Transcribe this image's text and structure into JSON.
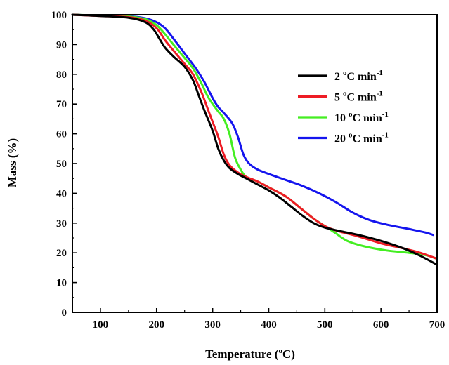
{
  "chart_data": {
    "type": "line",
    "xlabel": {
      "main": "Temperature (",
      "deg": "o",
      "unit": "C)"
    },
    "ylabel": "Mass (%)",
    "xlim": [
      50,
      700
    ],
    "ylim": [
      0,
      100
    ],
    "x_ticks": [
      100,
      200,
      300,
      400,
      500,
      600,
      700
    ],
    "y_ticks": [
      0,
      10,
      20,
      30,
      40,
      50,
      60,
      70,
      80,
      90,
      100
    ],
    "grid": false,
    "legend_position": "center-right",
    "series": [
      {
        "name": {
          "value": "2",
          "deg": "o",
          "unit": "C min",
          "exp": "-1"
        },
        "color": "#000000",
        "points": [
          [
            50,
            100
          ],
          [
            100,
            99.6
          ],
          [
            150,
            99
          ],
          [
            180,
            97.5
          ],
          [
            195,
            95
          ],
          [
            205,
            92
          ],
          [
            215,
            89
          ],
          [
            230,
            86
          ],
          [
            250,
            82.5
          ],
          [
            265,
            78
          ],
          [
            275,
            73
          ],
          [
            285,
            68
          ],
          [
            300,
            61
          ],
          [
            310,
            55
          ],
          [
            320,
            51
          ],
          [
            330,
            48.5
          ],
          [
            345,
            46.5
          ],
          [
            360,
            45
          ],
          [
            380,
            43
          ],
          [
            400,
            41
          ],
          [
            420,
            38.5
          ],
          [
            440,
            35.5
          ],
          [
            460,
            32.5
          ],
          [
            480,
            30
          ],
          [
            500,
            28.5
          ],
          [
            530,
            27.2
          ],
          [
            560,
            26
          ],
          [
            600,
            24
          ],
          [
            640,
            21.5
          ],
          [
            670,
            19
          ],
          [
            700,
            16
          ]
        ]
      },
      {
        "name": {
          "value": "5",
          "deg": "o",
          "unit": "C min",
          "exp": "-1"
        },
        "color": "#ee1c25",
        "points": [
          [
            50,
            100
          ],
          [
            100,
            99.6
          ],
          [
            150,
            99.2
          ],
          [
            180,
            98
          ],
          [
            200,
            95.5
          ],
          [
            215,
            91.5
          ],
          [
            230,
            88
          ],
          [
            250,
            83.5
          ],
          [
            265,
            80
          ],
          [
            280,
            74
          ],
          [
            290,
            69
          ],
          [
            300,
            64
          ],
          [
            310,
            59
          ],
          [
            320,
            53
          ],
          [
            330,
            49.5
          ],
          [
            345,
            47
          ],
          [
            360,
            45.5
          ],
          [
            380,
            44
          ],
          [
            400,
            42
          ],
          [
            430,
            39
          ],
          [
            460,
            34.5
          ],
          [
            480,
            31.5
          ],
          [
            500,
            29
          ],
          [
            520,
            27.5
          ],
          [
            560,
            25.5
          ],
          [
            600,
            23.2
          ],
          [
            640,
            21.5
          ],
          [
            670,
            20
          ],
          [
            700,
            18
          ]
        ]
      },
      {
        "name": {
          "value": "10",
          "deg": "o",
          "unit": "C min",
          "exp": "-1"
        },
        "color": "#44ee22",
        "points": [
          [
            50,
            100
          ],
          [
            100,
            99.7
          ],
          [
            150,
            99.4
          ],
          [
            180,
            98.5
          ],
          [
            200,
            96.5
          ],
          [
            215,
            93.5
          ],
          [
            230,
            90
          ],
          [
            250,
            85.5
          ],
          [
            265,
            82
          ],
          [
            280,
            77
          ],
          [
            290,
            73
          ],
          [
            300,
            70
          ],
          [
            310,
            67.5
          ],
          [
            320,
            65
          ],
          [
            330,
            60
          ],
          [
            340,
            52
          ],
          [
            350,
            48
          ],
          [
            360,
            45.5
          ],
          [
            380,
            44
          ],
          [
            400,
            42
          ],
          [
            430,
            39
          ],
          [
            460,
            34.5
          ],
          [
            480,
            31.5
          ],
          [
            500,
            29
          ],
          [
            520,
            26.5
          ],
          [
            540,
            24
          ],
          [
            570,
            22.2
          ],
          [
            610,
            20.8
          ],
          [
            650,
            20
          ],
          [
            680,
            19.2
          ],
          [
            700,
            18
          ]
        ]
      },
      {
        "name": {
          "value": "20",
          "deg": "o",
          "unit": "C min",
          "exp": "-1"
        },
        "color": "#1515ee",
        "points": [
          [
            50,
            100
          ],
          [
            100,
            99.7
          ],
          [
            150,
            99.5
          ],
          [
            180,
            98.8
          ],
          [
            200,
            97.5
          ],
          [
            215,
            95.5
          ],
          [
            230,
            92
          ],
          [
            250,
            87
          ],
          [
            270,
            82
          ],
          [
            285,
            77.5
          ],
          [
            300,
            72
          ],
          [
            310,
            69
          ],
          [
            320,
            67
          ],
          [
            335,
            63.5
          ],
          [
            345,
            59
          ],
          [
            355,
            53
          ],
          [
            365,
            50
          ],
          [
            380,
            48
          ],
          [
            400,
            46.5
          ],
          [
            430,
            44.5
          ],
          [
            460,
            42.5
          ],
          [
            490,
            40
          ],
          [
            520,
            37
          ],
          [
            550,
            33.5
          ],
          [
            580,
            31
          ],
          [
            610,
            29.5
          ],
          [
            650,
            28
          ],
          [
            680,
            26.8
          ],
          [
            693,
            26
          ]
        ]
      }
    ]
  }
}
